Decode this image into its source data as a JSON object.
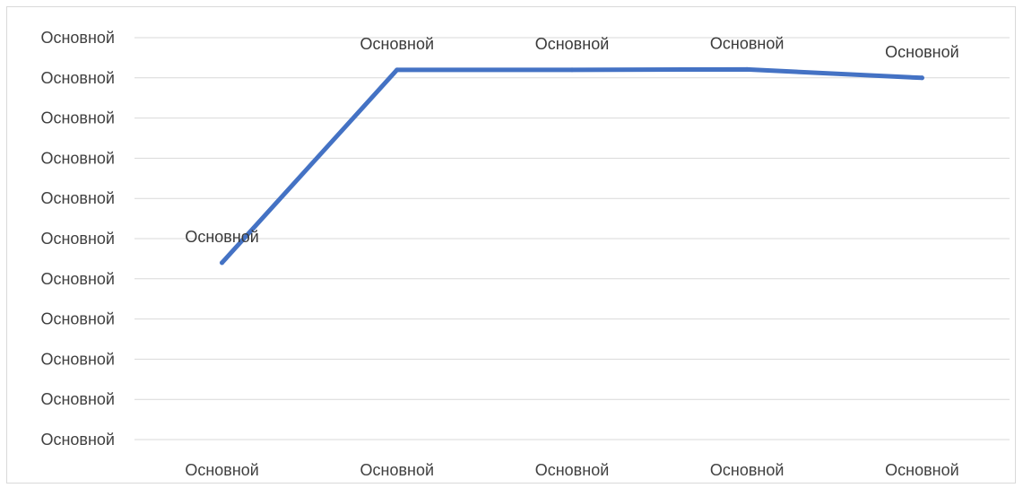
{
  "chart_data": {
    "type": "line",
    "categories": [
      "Основной",
      "Основной",
      "Основной",
      "Основной",
      "Основной"
    ],
    "series": [
      {
        "values": [
          4.4,
          9.2,
          9.2,
          9.21,
          9.0
        ],
        "data_labels": [
          "Основной",
          "Основной",
          "Основной",
          "Основной",
          "Основной"
        ]
      }
    ],
    "y_tick_labels": [
      "Основной",
      "Основной",
      "Основной",
      "Основной",
      "Основной",
      "Основной",
      "Основной",
      "Основной",
      "Основной",
      "Основной",
      "Основной"
    ],
    "ylim": [
      0,
      10
    ],
    "title": "",
    "xlabel": "",
    "ylabel": "",
    "grid": true,
    "legend": "none",
    "colors": {
      "line": "#4472c4",
      "grid": "#d9d9d9",
      "text": "#404040",
      "border": "#d9d9d9"
    }
  }
}
